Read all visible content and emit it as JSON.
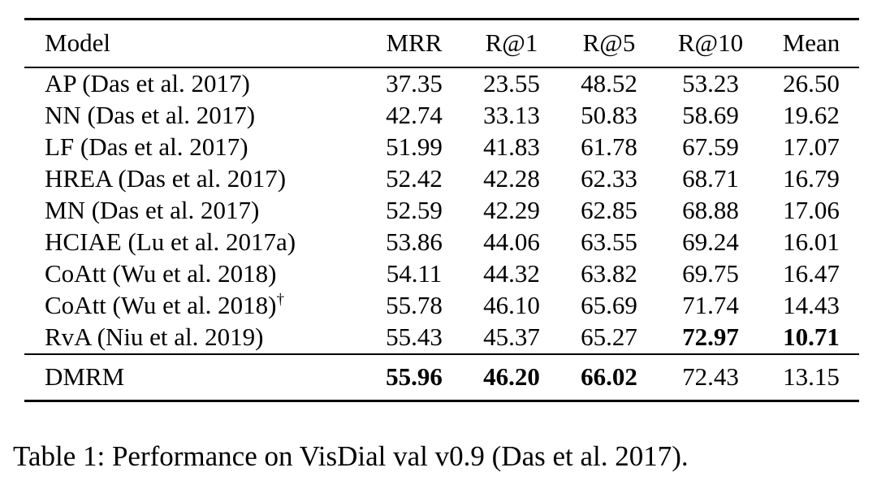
{
  "table": {
    "columns": [
      "Model",
      "MRR",
      "R@1",
      "R@5",
      "R@10",
      "Mean"
    ],
    "rows": [
      {
        "model": "AP (Das et al. 2017)",
        "sup": "",
        "values": [
          "37.35",
          "23.55",
          "48.52",
          "53.23",
          "26.50"
        ],
        "bold": [
          false,
          false,
          false,
          false,
          false
        ]
      },
      {
        "model": "NN (Das et al. 2017)",
        "sup": "",
        "values": [
          "42.74",
          "33.13",
          "50.83",
          "58.69",
          "19.62"
        ],
        "bold": [
          false,
          false,
          false,
          false,
          false
        ]
      },
      {
        "model": "LF (Das et al. 2017)",
        "sup": "",
        "values": [
          "51.99",
          "41.83",
          "61.78",
          "67.59",
          "17.07"
        ],
        "bold": [
          false,
          false,
          false,
          false,
          false
        ]
      },
      {
        "model": "HREA (Das et al. 2017)",
        "sup": "",
        "values": [
          "52.42",
          "42.28",
          "62.33",
          "68.71",
          "16.79"
        ],
        "bold": [
          false,
          false,
          false,
          false,
          false
        ]
      },
      {
        "model": "MN (Das et al. 2017)",
        "sup": "",
        "values": [
          "52.59",
          "42.29",
          "62.85",
          "68.88",
          "17.06"
        ],
        "bold": [
          false,
          false,
          false,
          false,
          false
        ]
      },
      {
        "model": "HCIAE (Lu et al. 2017a)",
        "sup": "",
        "values": [
          "53.86",
          "44.06",
          "63.55",
          "69.24",
          "16.01"
        ],
        "bold": [
          false,
          false,
          false,
          false,
          false
        ]
      },
      {
        "model": "CoAtt (Wu et al. 2018)",
        "sup": "",
        "values": [
          "54.11",
          "44.32",
          "63.82",
          "69.75",
          "16.47"
        ],
        "bold": [
          false,
          false,
          false,
          false,
          false
        ]
      },
      {
        "model": "CoAtt (Wu et al. 2018)",
        "sup": "†",
        "values": [
          "55.78",
          "46.10",
          "65.69",
          "71.74",
          "14.43"
        ],
        "bold": [
          false,
          false,
          false,
          false,
          false
        ]
      },
      {
        "model": "RvA (Niu et al. 2019)",
        "sup": "",
        "values": [
          "55.43",
          "45.37",
          "65.27",
          "72.97",
          "10.71"
        ],
        "bold": [
          false,
          false,
          false,
          true,
          true
        ]
      }
    ],
    "final_row": {
      "model": "DMRM",
      "sup": "",
      "values": [
        "55.96",
        "46.20",
        "66.02",
        "72.43",
        "13.15"
      ],
      "bold": [
        true,
        true,
        true,
        false,
        false
      ]
    }
  },
  "caption": "Table 1: Performance on VisDial val v0.9 (Das et al. 2017).",
  "colors": {
    "text": "#000000",
    "background": "#ffffff",
    "rule": "#000000"
  }
}
